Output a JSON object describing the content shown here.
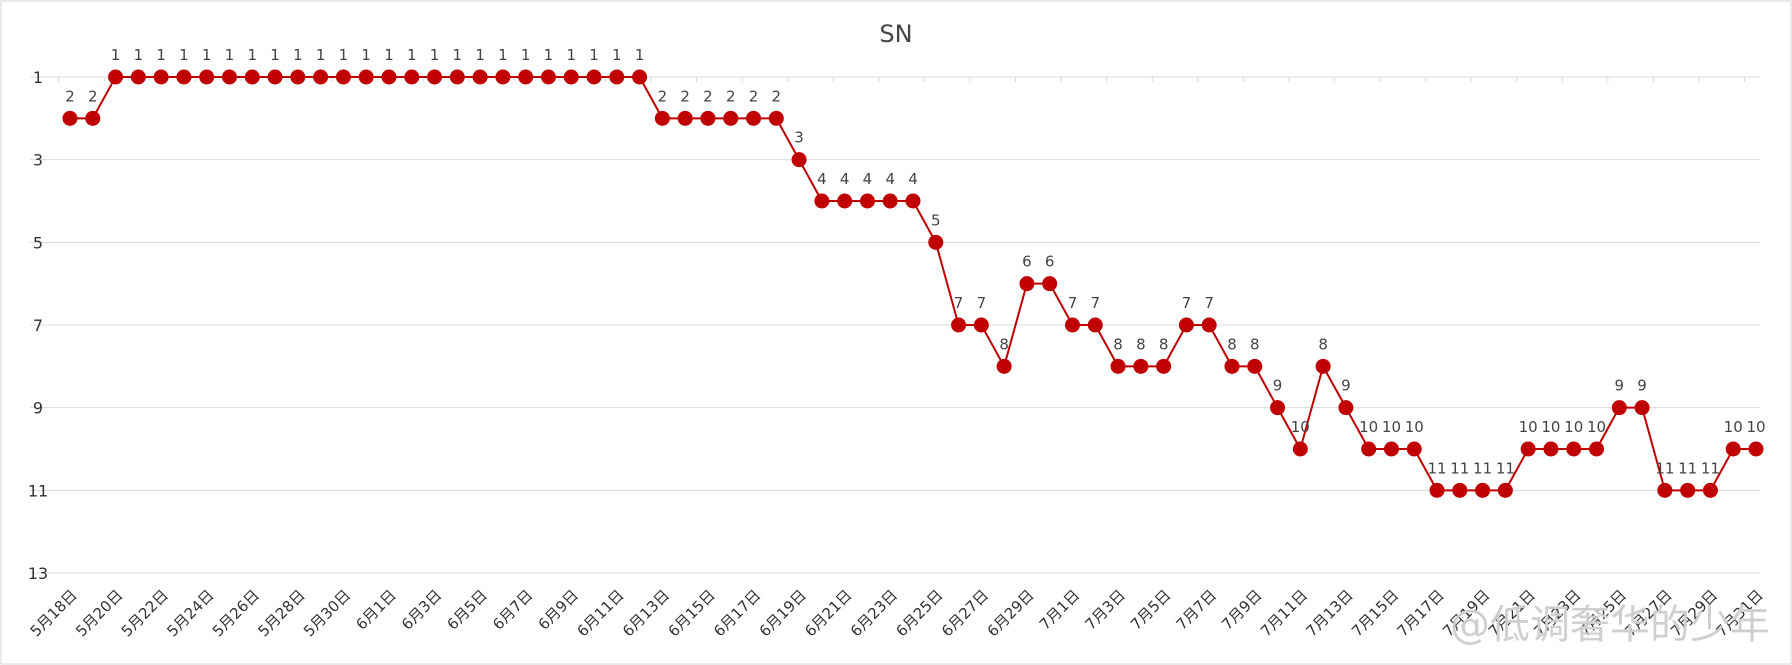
{
  "chart_data": {
    "type": "line",
    "title": "SN",
    "xlabel": "",
    "ylabel": "",
    "y_inverted": true,
    "ylim": [
      1,
      13
    ],
    "yticks": [
      1,
      3,
      5,
      7,
      9,
      11,
      13
    ],
    "grid": true,
    "legend": "none",
    "x": [
      "5月18日",
      "5月19日",
      "5月20日",
      "5月21日",
      "5月22日",
      "5月23日",
      "5月24日",
      "5月25日",
      "5月26日",
      "5月27日",
      "5月28日",
      "5月29日",
      "5月30日",
      "5月31日",
      "6月1日",
      "6月2日",
      "6月3日",
      "6月4日",
      "6月5日",
      "6月6日",
      "6月7日",
      "6月8日",
      "6月9日",
      "6月10日",
      "6月11日",
      "6月12日",
      "6月13日",
      "6月14日",
      "6月15日",
      "6月16日",
      "6月17日",
      "6月18日",
      "6月19日",
      "6月20日",
      "6月21日",
      "6月22日",
      "6月23日",
      "6月24日",
      "6月25日",
      "6月26日",
      "6月27日",
      "6月28日",
      "6月29日",
      "6月30日",
      "7月1日",
      "7月2日",
      "7月3日",
      "7月4日",
      "7月5日",
      "7月6日",
      "7月7日",
      "7月8日",
      "7月9日",
      "7月10日",
      "7月11日",
      "7月12日",
      "7月13日",
      "7月14日",
      "7月15日",
      "7月16日",
      "7月17日",
      "7月18日",
      "7月19日",
      "7月20日",
      "7月21日",
      "7月22日",
      "7月23日",
      "7月24日",
      "7月25日",
      "7月26日",
      "7月27日",
      "7月28日",
      "7月29日",
      "7月30日",
      "7月31日"
    ],
    "xtick_labels": [
      "5月18日",
      "5月20日",
      "5月22日",
      "5月24日",
      "5月26日",
      "5月28日",
      "5月30日",
      "6月1日",
      "6月3日",
      "6月5日",
      "6月7日",
      "6月9日",
      "6月11日",
      "6月13日",
      "6月15日",
      "6月17日",
      "6月19日",
      "6月21日",
      "6月23日",
      "6月25日",
      "6月27日",
      "6月29日",
      "7月1日",
      "7月3日",
      "7月5日",
      "7月7日",
      "7月9日",
      "7月11日",
      "7月13日",
      "7月15日",
      "7月17日",
      "7月19日",
      "7月21日",
      "7月23日",
      "7月25日",
      "7月27日",
      "7月29日",
      "7月31日"
    ],
    "series": [
      {
        "values": [
          2,
          2,
          1,
          1,
          1,
          1,
          1,
          1,
          1,
          1,
          1,
          1,
          1,
          1,
          1,
          1,
          1,
          1,
          1,
          1,
          1,
          1,
          1,
          1,
          1,
          1,
          2,
          2,
          2,
          2,
          2,
          2,
          3,
          4,
          4,
          4,
          4,
          4,
          5,
          7,
          7,
          8,
          6,
          6,
          7,
          7,
          8,
          8,
          8,
          7,
          7,
          8,
          8,
          9,
          10,
          8,
          9,
          10,
          10,
          10,
          11,
          11,
          11,
          11,
          10,
          10,
          10,
          10,
          9,
          9,
          11,
          11,
          11,
          10,
          10
        ],
        "color": "#c00000"
      }
    ],
    "watermark": "@低调奢华的少年"
  }
}
